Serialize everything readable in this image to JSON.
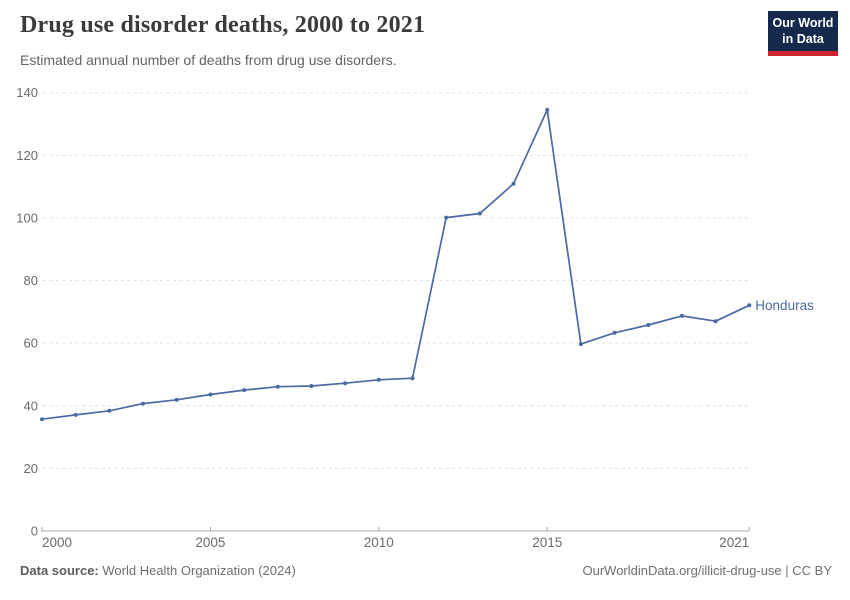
{
  "header": {
    "title": "Drug use disorder deaths, 2000 to 2021",
    "subtitle": "Estimated annual number of deaths from drug use disorders.",
    "logo_line1": "Our World",
    "logo_line2": "in Data"
  },
  "footer": {
    "source_label": "Data source:",
    "source_value": "World Health Organization (2024)",
    "credit": "OurWorldinData.org/illicit-drug-use | CC BY"
  },
  "colors": {
    "accent_blue": "#4b6aa3",
    "grid": "#e2e2e2",
    "axis": "#a8a8a8",
    "tick_text": "#6b6b6b",
    "title_text": "#3b3b3b",
    "subtitle_text": "#636363",
    "footer_text": "#6e6e6e",
    "logo_navy": "#14294c",
    "logo_red": "#ce2331"
  },
  "chart_data": {
    "type": "line",
    "title": "Drug use disorder deaths, 2000 to 2021",
    "subtitle": "Estimated annual number of deaths from drug use disorders.",
    "x": [
      2000,
      2001,
      2002,
      2003,
      2004,
      2005,
      2006,
      2007,
      2008,
      2009,
      2010,
      2011,
      2012,
      2013,
      2014,
      2015,
      2016,
      2017,
      2018,
      2019,
      2020,
      2021
    ],
    "series": [
      {
        "name": "Honduras",
        "color": "#4b6aa3",
        "values": [
          35.7,
          37.1,
          38.4,
          40.7,
          41.9,
          43.6,
          45.0,
          46.1,
          46.3,
          47.2,
          48.3,
          48.8,
          100.1,
          101.4,
          110.9,
          134.5,
          59.7,
          63.3,
          65.8,
          68.7,
          67.0,
          72.1
        ]
      }
    ],
    "xlabel": "",
    "ylabel": "",
    "xlim": [
      2000,
      2021
    ],
    "ylim": [
      0,
      140
    ],
    "xticks": [
      2000,
      2005,
      2010,
      2015,
      2021
    ],
    "yticks": [
      0,
      20,
      40,
      60,
      80,
      100,
      120,
      140
    ],
    "grid": "horizontal-dashed",
    "legend": "end-of-line-label"
  }
}
